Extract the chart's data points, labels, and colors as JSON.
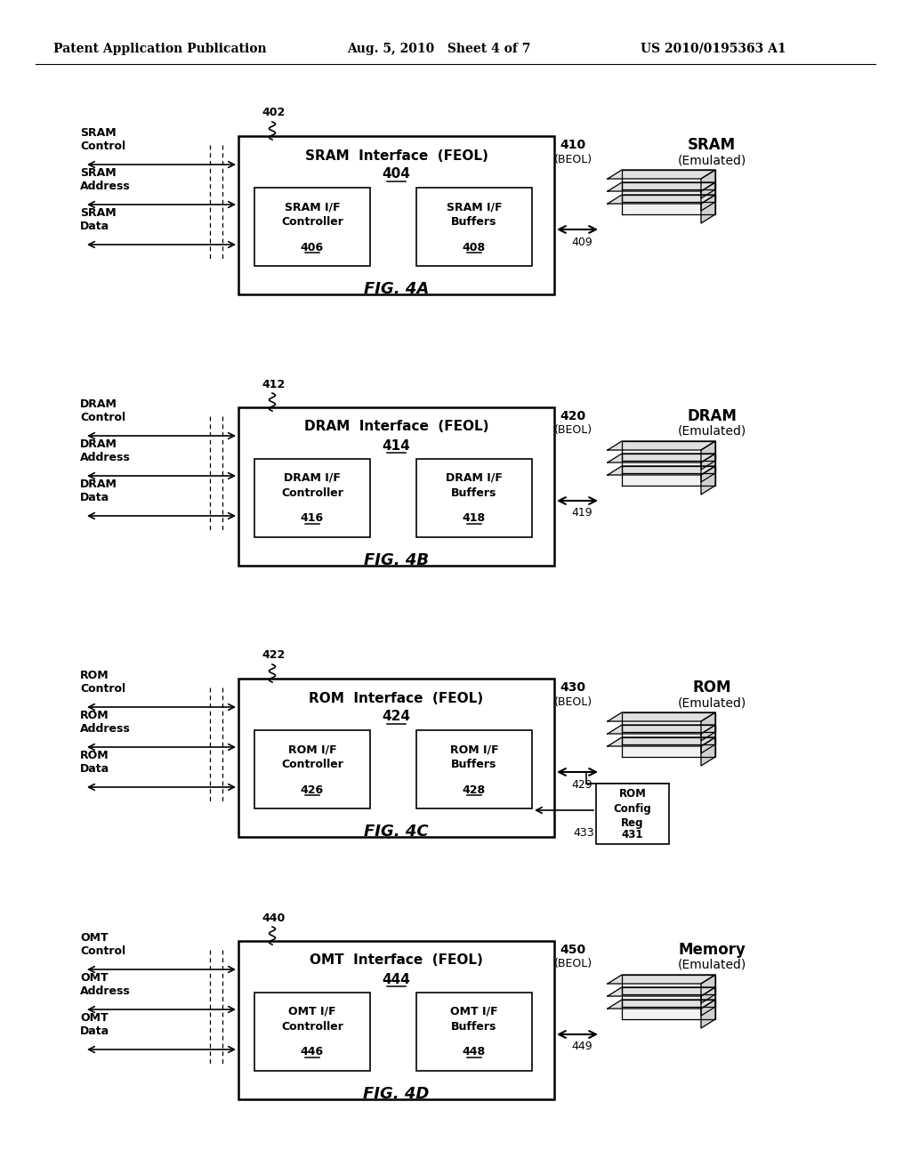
{
  "bg_color": "#ffffff",
  "header_left": "Patent Application Publication",
  "header_mid": "Aug. 5, 2010   Sheet 4 of 7",
  "header_right": "US 2010/0195363 A1",
  "diagrams": [
    {
      "fig_label": "FIG. 4A",
      "ref_num": "402",
      "interface_title": "SRAM  Interface  (FEOL)",
      "interface_num": "404",
      "ctrl_label": "SRAM\nControl",
      "addr_label": "SRAM\nAddress",
      "data_label": "SRAM\nData",
      "box1_title": "SRAM I/F\nController",
      "box1_num": "406",
      "box2_title": "SRAM I/F\nBuffers",
      "box2_num": "408",
      "arrow_num": "409",
      "beol_num": "410",
      "beol_label": "(BEOL)",
      "mem_title": "SRAM",
      "mem_subtitle": "(Emulated)",
      "has_config": false
    },
    {
      "fig_label": "FIG. 4B",
      "ref_num": "412",
      "interface_title": "DRAM  Interface  (FEOL)",
      "interface_num": "414",
      "ctrl_label": "DRAM\nControl",
      "addr_label": "DRAM\nAddress",
      "data_label": "DRAM\nData",
      "box1_title": "DRAM I/F\nController",
      "box1_num": "416",
      "box2_title": "DRAM I/F\nBuffers",
      "box2_num": "418",
      "arrow_num": "419",
      "beol_num": "420",
      "beol_label": "(BEOL)",
      "mem_title": "DRAM",
      "mem_subtitle": "(Emulated)",
      "has_config": false
    },
    {
      "fig_label": "FIG. 4C",
      "ref_num": "422",
      "interface_title": "ROM  Interface  (FEOL)",
      "interface_num": "424",
      "ctrl_label": "ROM\nControl",
      "addr_label": "ROM\nAddress",
      "data_label": "ROM\nData",
      "box1_title": "ROM I/F\nController",
      "box1_num": "426",
      "box2_title": "ROM I/F\nBuffers",
      "box2_num": "428",
      "arrow_num": "429",
      "beol_num": "430",
      "beol_label": "(BEOL)",
      "mem_title": "ROM",
      "mem_subtitle": "(Emulated)",
      "has_config": true,
      "config_title": "ROM\nConfig\nReg",
      "config_num": "431",
      "config_arrow_num": "433"
    },
    {
      "fig_label": "FIG. 4D",
      "ref_num": "440",
      "interface_title": "OMT  Interface  (FEOL)",
      "interface_num": "444",
      "ctrl_label": "OMT\nControl",
      "addr_label": "OMT\nAddress",
      "data_label": "OMT\nData",
      "box1_title": "OMT I/F\nController",
      "box1_num": "446",
      "box2_title": "OMT I/F\nBuffers",
      "box2_num": "448",
      "arrow_num": "449",
      "beol_num": "450",
      "beol_label": "(BEOL)",
      "mem_title": "Memory",
      "mem_subtitle": "(Emulated)",
      "has_config": false
    }
  ]
}
